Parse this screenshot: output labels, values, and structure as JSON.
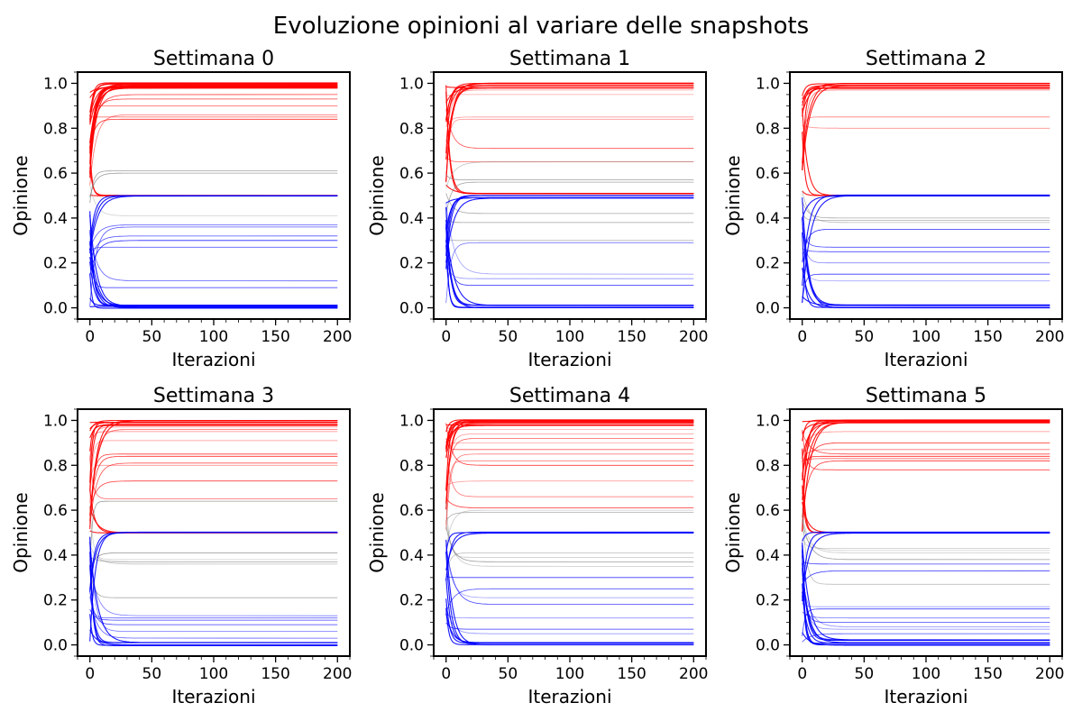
{
  "figure": {
    "suptitle": "Evoluzione opinioni al variare delle snapshots"
  },
  "colors": {
    "right": "#ff0000",
    "left": "#0000ff",
    "neutral": "#808080",
    "axes": "#000000"
  },
  "chart_data": [
    {
      "type": "line",
      "title": "Settimana 0",
      "xlabel": "Iterazioni",
      "ylabel": "Opinione",
      "xlim": [
        -10,
        210
      ],
      "ylim": [
        -0.05,
        1.05
      ],
      "xticks": [
        "0",
        "50",
        "100",
        "150",
        "200"
      ],
      "yticks": [
        "0.0",
        "0.2",
        "0.4",
        "0.6",
        "0.8",
        "1.0"
      ],
      "grid": false,
      "series": [
        {
          "group": "red",
          "final": [
            1.0,
            0.995,
            0.99,
            0.985,
            0.98,
            0.95,
            0.93,
            0.9,
            0.86,
            0.85,
            0.84,
            0.5
          ]
        },
        {
          "group": "gray",
          "final": [
            0.61,
            0.6,
            0.41
          ]
        },
        {
          "group": "blue",
          "final": [
            0.5,
            0.37,
            0.36,
            0.32,
            0.3,
            0.27,
            0.12,
            0.09,
            0.01,
            0.005,
            0.0
          ]
        }
      ]
    },
    {
      "type": "line",
      "title": "Settimana 1",
      "xlabel": "Iterazioni",
      "ylabel": "Opinione",
      "xlim": [
        -10,
        210
      ],
      "ylim": [
        -0.05,
        1.05
      ],
      "xticks": [
        "0",
        "50",
        "100",
        "150",
        "200"
      ],
      "yticks": [
        "0.0",
        "0.2",
        "0.4",
        "0.6",
        "0.8",
        "1.0"
      ],
      "grid": false,
      "series": [
        {
          "group": "red",
          "final": [
            1.0,
            0.99,
            0.98,
            0.97,
            0.95,
            0.85,
            0.84,
            0.71,
            0.65,
            0.51
          ]
        },
        {
          "group": "gray",
          "final": [
            0.65,
            0.57,
            0.56,
            0.42,
            0.38,
            0.3
          ]
        },
        {
          "group": "blue",
          "final": [
            0.5,
            0.49,
            0.29,
            0.15,
            0.13,
            0.1,
            0.01,
            0.0
          ]
        }
      ]
    },
    {
      "type": "line",
      "title": "Settimana 2",
      "xlabel": "Iterazioni",
      "ylabel": "Opinione",
      "xlim": [
        -10,
        210
      ],
      "ylim": [
        -0.05,
        1.05
      ],
      "xticks": [
        "0",
        "50",
        "100",
        "150",
        "200"
      ],
      "yticks": [
        "0.0",
        "0.2",
        "0.4",
        "0.6",
        "0.8",
        "1.0"
      ],
      "grid": false,
      "series": [
        {
          "group": "red",
          "final": [
            1.0,
            0.99,
            0.98,
            0.97,
            0.85,
            0.8,
            0.5
          ]
        },
        {
          "group": "gray",
          "final": [
            0.4,
            0.39,
            0.38
          ]
        },
        {
          "group": "blue",
          "final": [
            0.5,
            0.35,
            0.27,
            0.25,
            0.2,
            0.15,
            0.12,
            0.01,
            0.0
          ]
        }
      ]
    },
    {
      "type": "line",
      "title": "Settimana 3",
      "xlabel": "Iterazioni",
      "ylabel": "Opinione",
      "xlim": [
        -10,
        210
      ],
      "ylim": [
        -0.05,
        1.05
      ],
      "xticks": [
        "0",
        "50",
        "100",
        "150",
        "200"
      ],
      "yticks": [
        "0.0",
        "0.2",
        "0.4",
        "0.6",
        "0.8",
        "1.0"
      ],
      "grid": false,
      "series": [
        {
          "group": "red",
          "final": [
            1.0,
            0.99,
            0.98,
            0.97,
            0.96,
            0.95,
            0.91,
            0.85,
            0.84,
            0.81,
            0.8,
            0.73,
            0.65,
            0.5
          ]
        },
        {
          "group": "gray",
          "final": [
            0.64,
            0.41,
            0.38,
            0.37,
            0.36,
            0.21
          ]
        },
        {
          "group": "blue",
          "final": [
            0.5,
            0.13,
            0.12,
            0.11,
            0.09,
            0.06,
            0.03,
            0.01,
            0.0
          ]
        }
      ]
    },
    {
      "type": "line",
      "title": "Settimana 4",
      "xlabel": "Iterazioni",
      "ylabel": "Opinione",
      "xlim": [
        -10,
        210
      ],
      "ylim": [
        -0.05,
        1.05
      ],
      "xticks": [
        "0",
        "50",
        "100",
        "150",
        "200"
      ],
      "yticks": [
        "0.0",
        "0.2",
        "0.4",
        "0.6",
        "0.8",
        "1.0"
      ],
      "grid": false,
      "series": [
        {
          "group": "red",
          "final": [
            1.0,
            0.995,
            0.99,
            0.98,
            0.96,
            0.94,
            0.92,
            0.9,
            0.87,
            0.85,
            0.82,
            0.8,
            0.73,
            0.66,
            0.61
          ]
        },
        {
          "group": "gray",
          "final": [
            0.6,
            0.59,
            0.41,
            0.39,
            0.37,
            0.35
          ]
        },
        {
          "group": "blue",
          "final": [
            0.5,
            0.3,
            0.25,
            0.21,
            0.18,
            0.12,
            0.07,
            0.05,
            0.01,
            0.0
          ]
        }
      ]
    },
    {
      "type": "line",
      "title": "Settimana 5",
      "xlabel": "Iterazioni",
      "ylabel": "Opinione",
      "xlim": [
        -10,
        210
      ],
      "ylim": [
        -0.05,
        1.05
      ],
      "xticks": [
        "0",
        "50",
        "100",
        "150",
        "200"
      ],
      "yticks": [
        "0.0",
        "0.2",
        "0.4",
        "0.6",
        "0.8",
        "1.0"
      ],
      "grid": false,
      "series": [
        {
          "group": "red",
          "final": [
            1.0,
            0.995,
            0.99,
            0.95,
            0.9,
            0.87,
            0.85,
            0.84,
            0.83,
            0.82,
            0.78,
            0.5
          ]
        },
        {
          "group": "gray",
          "final": [
            0.43,
            0.42,
            0.41,
            0.38,
            0.27
          ]
        },
        {
          "group": "blue",
          "final": [
            0.5,
            0.36,
            0.33,
            0.17,
            0.16,
            0.12,
            0.1,
            0.08,
            0.07,
            0.05,
            0.02,
            0.01,
            0.0
          ]
        }
      ]
    }
  ]
}
